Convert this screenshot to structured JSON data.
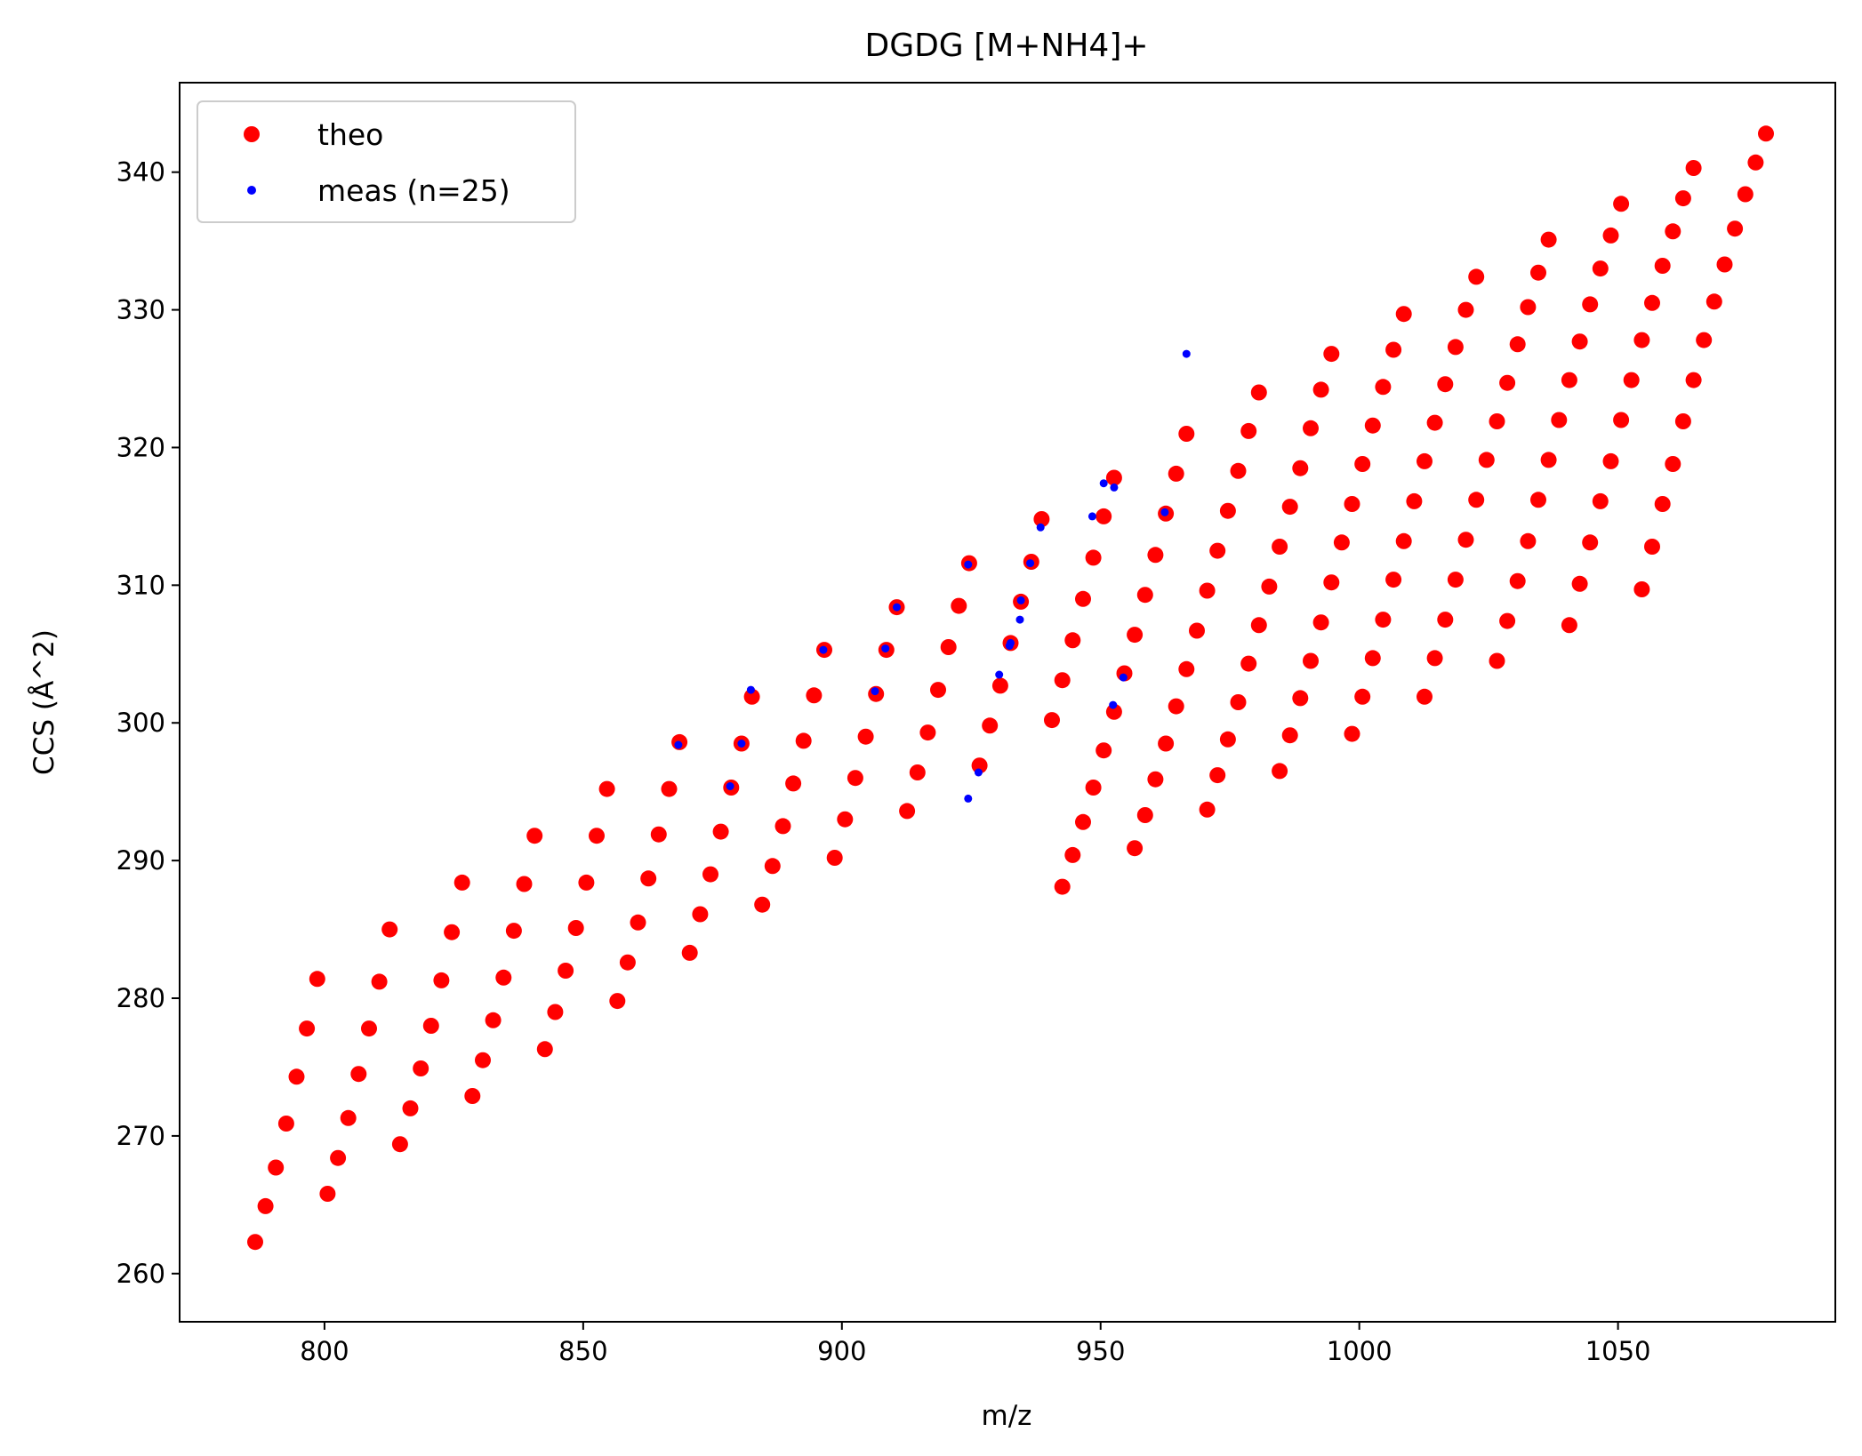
{
  "chart_data": {
    "type": "scatter",
    "title": "DGDG [M+NH4]+",
    "xlabel": "m/z",
    "ylabel": "CCS (Å^2)",
    "xlim": [
      772,
      1092
    ],
    "ylim": [
      256.5,
      346.5
    ],
    "xticks": [
      800,
      850,
      900,
      950,
      1000,
      1050
    ],
    "yticks": [
      260,
      270,
      280,
      290,
      300,
      310,
      320,
      330,
      340
    ],
    "grid": false,
    "legend_position": "top-left",
    "series": [
      {
        "name": "theo",
        "color": "#ff0000",
        "marker": "large-circle",
        "points": [
          [
            786.6,
            262.3
          ],
          [
            788.6,
            264.9
          ],
          [
            790.6,
            267.7
          ],
          [
            792.6,
            270.9
          ],
          [
            794.6,
            274.3
          ],
          [
            796.6,
            277.8
          ],
          [
            798.6,
            281.4
          ],
          [
            800.6,
            265.8
          ],
          [
            802.6,
            268.4
          ],
          [
            804.6,
            271.3
          ],
          [
            806.6,
            274.5
          ],
          [
            808.6,
            277.8
          ],
          [
            810.6,
            281.2
          ],
          [
            812.6,
            285.0
          ],
          [
            814.6,
            269.4
          ],
          [
            816.6,
            272.0
          ],
          [
            818.6,
            274.9
          ],
          [
            820.6,
            278.0
          ],
          [
            822.6,
            281.3
          ],
          [
            824.6,
            284.8
          ],
          [
            826.6,
            288.4
          ],
          [
            828.6,
            272.9
          ],
          [
            830.6,
            275.5
          ],
          [
            832.6,
            278.4
          ],
          [
            834.6,
            281.5
          ],
          [
            836.6,
            284.9
          ],
          [
            838.6,
            288.3
          ],
          [
            840.6,
            291.8
          ],
          [
            842.6,
            276.3
          ],
          [
            844.6,
            279.0
          ],
          [
            846.6,
            282.0
          ],
          [
            848.6,
            285.1
          ],
          [
            850.6,
            288.4
          ],
          [
            852.6,
            291.8
          ],
          [
            854.6,
            295.2
          ],
          [
            856.6,
            279.8
          ],
          [
            858.6,
            282.6
          ],
          [
            860.6,
            285.5
          ],
          [
            862.6,
            288.7
          ],
          [
            864.6,
            291.9
          ],
          [
            866.6,
            295.2
          ],
          [
            868.6,
            298.6
          ],
          [
            870.6,
            283.3
          ],
          [
            872.6,
            286.1
          ],
          [
            874.6,
            289.0
          ],
          [
            876.6,
            292.1
          ],
          [
            878.6,
            295.3
          ],
          [
            880.6,
            298.5
          ],
          [
            882.6,
            301.9
          ],
          [
            884.6,
            286.8
          ],
          [
            886.6,
            289.6
          ],
          [
            888.6,
            292.5
          ],
          [
            890.6,
            295.6
          ],
          [
            892.6,
            298.7
          ],
          [
            894.6,
            302.0
          ],
          [
            896.6,
            305.3
          ],
          [
            898.6,
            290.2
          ],
          [
            900.6,
            293.0
          ],
          [
            902.6,
            296.0
          ],
          [
            904.6,
            299.0
          ],
          [
            906.6,
            302.1
          ],
          [
            908.6,
            305.3
          ],
          [
            910.6,
            308.4
          ],
          [
            912.6,
            293.6
          ],
          [
            914.6,
            296.4
          ],
          [
            916.6,
            299.3
          ],
          [
            918.6,
            302.4
          ],
          [
            920.6,
            305.5
          ],
          [
            922.6,
            308.5
          ],
          [
            924.6,
            311.6
          ],
          [
            926.6,
            296.9
          ],
          [
            928.6,
            299.8
          ],
          [
            930.6,
            302.7
          ],
          [
            932.6,
            305.8
          ],
          [
            934.6,
            308.8
          ],
          [
            936.6,
            311.7
          ],
          [
            938.6,
            314.8
          ],
          [
            942.6,
            288.1
          ],
          [
            944.6,
            290.4
          ],
          [
            946.6,
            292.8
          ],
          [
            948.6,
            295.3
          ],
          [
            950.6,
            298.0
          ],
          [
            952.6,
            300.8
          ],
          [
            954.6,
            303.6
          ],
          [
            956.6,
            306.4
          ],
          [
            958.6,
            309.3
          ],
          [
            960.6,
            312.2
          ],
          [
            962.6,
            315.2
          ],
          [
            964.6,
            318.1
          ],
          [
            966.6,
            321.0
          ],
          [
            946.6,
            309.0
          ],
          [
            948.6,
            312.0
          ],
          [
            950.6,
            315.0
          ],
          [
            952.6,
            317.8
          ],
          [
            940.6,
            300.2
          ],
          [
            942.6,
            303.1
          ],
          [
            944.6,
            306.0
          ],
          [
            956.6,
            290.9
          ],
          [
            958.6,
            293.3
          ],
          [
            960.6,
            295.9
          ],
          [
            962.6,
            298.5
          ],
          [
            964.6,
            301.2
          ],
          [
            966.6,
            303.9
          ],
          [
            968.6,
            306.7
          ],
          [
            970.6,
            309.6
          ],
          [
            972.6,
            312.5
          ],
          [
            974.6,
            315.4
          ],
          [
            976.6,
            318.3
          ],
          [
            978.6,
            321.2
          ],
          [
            980.6,
            324.0
          ],
          [
            970.6,
            293.7
          ],
          [
            972.6,
            296.2
          ],
          [
            974.6,
            298.8
          ],
          [
            976.6,
            301.5
          ],
          [
            978.6,
            304.3
          ],
          [
            980.6,
            307.1
          ],
          [
            982.6,
            309.9
          ],
          [
            984.6,
            312.8
          ],
          [
            986.6,
            315.7
          ],
          [
            988.6,
            318.5
          ],
          [
            990.6,
            321.4
          ],
          [
            992.6,
            324.2
          ],
          [
            994.6,
            326.8
          ],
          [
            984.6,
            296.5
          ],
          [
            986.6,
            299.1
          ],
          [
            988.6,
            301.8
          ],
          [
            990.6,
            304.5
          ],
          [
            992.6,
            307.3
          ],
          [
            994.6,
            310.2
          ],
          [
            996.6,
            313.1
          ],
          [
            998.6,
            315.9
          ],
          [
            1000.6,
            318.8
          ],
          [
            1002.6,
            321.6
          ],
          [
            1004.6,
            324.4
          ],
          [
            1006.6,
            327.1
          ],
          [
            1008.6,
            329.7
          ],
          [
            998.6,
            299.2
          ],
          [
            1000.6,
            301.9
          ],
          [
            1002.6,
            304.7
          ],
          [
            1004.6,
            307.5
          ],
          [
            1006.6,
            310.4
          ],
          [
            1008.6,
            313.2
          ],
          [
            1010.6,
            316.1
          ],
          [
            1012.6,
            319.0
          ],
          [
            1014.6,
            321.8
          ],
          [
            1016.6,
            324.6
          ],
          [
            1018.6,
            327.3
          ],
          [
            1020.6,
            330.0
          ],
          [
            1022.6,
            332.4
          ],
          [
            1012.6,
            301.9
          ],
          [
            1014.6,
            304.7
          ],
          [
            1016.6,
            307.5
          ],
          [
            1018.6,
            310.4
          ],
          [
            1020.6,
            313.3
          ],
          [
            1022.6,
            316.2
          ],
          [
            1024.6,
            319.1
          ],
          [
            1026.6,
            321.9
          ],
          [
            1028.6,
            324.7
          ],
          [
            1030.6,
            327.5
          ],
          [
            1032.6,
            330.2
          ],
          [
            1034.6,
            332.7
          ],
          [
            1036.6,
            335.1
          ],
          [
            1026.6,
            304.5
          ],
          [
            1028.6,
            307.4
          ],
          [
            1030.6,
            310.3
          ],
          [
            1032.6,
            313.2
          ],
          [
            1034.6,
            316.2
          ],
          [
            1036.6,
            319.1
          ],
          [
            1038.6,
            322.0
          ],
          [
            1040.6,
            324.9
          ],
          [
            1042.6,
            327.7
          ],
          [
            1044.6,
            330.4
          ],
          [
            1046.6,
            333.0
          ],
          [
            1048.6,
            335.4
          ],
          [
            1050.6,
            337.7
          ],
          [
            1040.6,
            307.1
          ],
          [
            1042.6,
            310.1
          ],
          [
            1044.6,
            313.1
          ],
          [
            1046.6,
            316.1
          ],
          [
            1048.6,
            319.0
          ],
          [
            1050.6,
            322.0
          ],
          [
            1052.6,
            324.9
          ],
          [
            1054.6,
            327.8
          ],
          [
            1056.6,
            330.5
          ],
          [
            1058.6,
            333.2
          ],
          [
            1060.6,
            335.7
          ],
          [
            1062.6,
            338.1
          ],
          [
            1064.6,
            340.3
          ],
          [
            1054.6,
            309.7
          ],
          [
            1056.6,
            312.8
          ],
          [
            1058.6,
            315.9
          ],
          [
            1060.6,
            318.8
          ],
          [
            1062.6,
            321.9
          ],
          [
            1064.6,
            324.9
          ],
          [
            1066.6,
            327.8
          ],
          [
            1068.6,
            330.6
          ],
          [
            1070.6,
            333.3
          ],
          [
            1072.6,
            335.9
          ],
          [
            1074.6,
            338.4
          ],
          [
            1076.6,
            340.7
          ],
          [
            1078.6,
            342.8
          ]
        ]
      },
      {
        "name": "meas (n=25)",
        "color": "#0000ff",
        "marker": "small-circle",
        "points": [
          [
            868.4,
            298.4
          ],
          [
            880.6,
            298.5
          ],
          [
            878.4,
            295.4
          ],
          [
            882.4,
            302.4
          ],
          [
            896.4,
            305.3
          ],
          [
            906.4,
            302.3
          ],
          [
            908.4,
            305.4
          ],
          [
            910.6,
            308.4
          ],
          [
            924.4,
            311.5
          ],
          [
            924.4,
            294.5
          ],
          [
            926.4,
            296.4
          ],
          [
            930.4,
            303.5
          ],
          [
            932.4,
            305.6
          ],
          [
            932.6,
            305.8
          ],
          [
            934.4,
            307.5
          ],
          [
            934.6,
            308.9
          ],
          [
            936.4,
            311.6
          ],
          [
            938.4,
            314.2
          ],
          [
            948.4,
            315.0
          ],
          [
            950.6,
            317.4
          ],
          [
            952.6,
            317.1
          ],
          [
            952.4,
            301.3
          ],
          [
            954.4,
            303.3
          ],
          [
            962.4,
            315.3
          ],
          [
            966.6,
            326.8
          ]
        ]
      }
    ]
  }
}
